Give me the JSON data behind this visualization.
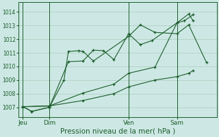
{
  "bg_color": "#cde8e4",
  "grid_color": "#aaccbb",
  "line_color": "#1a5c2a",
  "xlabel": "Pression niveau de la mer( hPa )",
  "xlabel_fontsize": 7.5,
  "ylim": [
    1006.3,
    1014.7
  ],
  "yticks": [
    1007,
    1008,
    1009,
    1010,
    1011,
    1012,
    1013,
    1014
  ],
  "ytick_fontsize": 5.5,
  "xtick_labels": [
    "Jeu",
    "Dim",
    "Ven",
    "Sam"
  ],
  "xtick_positions": [
    0,
    1.8,
    7.2,
    10.5
  ],
  "vline_positions": [
    0,
    1.8,
    7.2,
    10.5
  ],
  "xlim": [
    -0.3,
    13.2
  ],
  "series": [
    {
      "x": [
        0,
        0.6,
        1.8,
        2.8,
        3.1,
        3.8,
        4.1,
        4.8,
        7.2,
        8.0,
        9.0,
        10.5,
        11.3,
        12.5
      ],
      "y": [
        1007.05,
        1006.7,
        1007.0,
        1009.0,
        1011.1,
        1011.15,
        1011.1,
        1010.4,
        1012.2,
        1013.05,
        1012.5,
        1012.4,
        1013.05,
        1010.3
      ]
    },
    {
      "x": [
        0,
        0.6,
        1.8,
        3.1,
        4.1,
        4.8,
        5.5,
        6.2,
        7.2,
        8.0,
        8.8,
        10.5,
        11.0,
        11.6
      ],
      "y": [
        1007.05,
        1006.7,
        1007.0,
        1010.35,
        1010.4,
        1011.2,
        1011.15,
        1010.5,
        1012.4,
        1011.6,
        1011.9,
        1013.2,
        1013.35,
        1013.8
      ]
    },
    {
      "x": [
        0,
        1.8,
        4.1,
        6.2,
        7.2,
        9.0,
        10.5,
        11.3,
        11.6
      ],
      "y": [
        1007.05,
        1007.1,
        1008.05,
        1008.7,
        1009.5,
        1009.95,
        1013.2,
        1013.85,
        1013.35
      ]
    },
    {
      "x": [
        0,
        1.8,
        4.1,
        6.2,
        7.2,
        9.0,
        10.5,
        11.3,
        11.6
      ],
      "y": [
        1007.05,
        1007.1,
        1007.5,
        1008.0,
        1008.5,
        1009.0,
        1009.25,
        1009.5,
        1009.7
      ]
    }
  ]
}
